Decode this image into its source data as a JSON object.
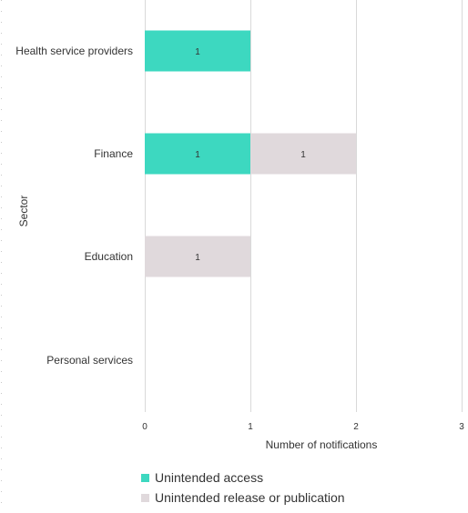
{
  "chart_data": {
    "type": "bar",
    "orientation": "horizontal",
    "stacked": true,
    "categories": [
      "Health service providers",
      "Finance",
      "Education",
      "Personal services"
    ],
    "series": [
      {
        "name": "Unintended access",
        "color": "#3dd8c0",
        "values": [
          1,
          1,
          0,
          0
        ]
      },
      {
        "name": "Unintended release or publication",
        "color": "#e0d9dc",
        "values": [
          0,
          1,
          1,
          0
        ]
      }
    ],
    "xlabel": "Number of notifications",
    "ylabel": "Sector",
    "xlim": [
      0,
      3
    ],
    "xticks": [
      "0",
      "1",
      "2",
      "3"
    ],
    "grid": true,
    "legend": "bottom"
  }
}
